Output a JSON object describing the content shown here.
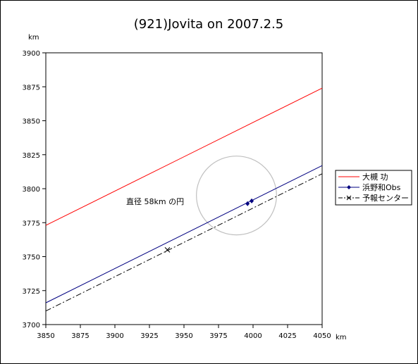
{
  "chart_data": {
    "type": "line",
    "title": "(921)Jovita on 2007.2.5",
    "xlabel": "km",
    "ylabel": "km",
    "xlim": [
      3850,
      4050
    ],
    "ylim": [
      3700,
      3900
    ],
    "xticks": [
      3850,
      3875,
      3900,
      3925,
      3950,
      3975,
      4000,
      4025,
      4050
    ],
    "yticks": [
      3700,
      3725,
      3750,
      3775,
      3800,
      3825,
      3850,
      3875,
      3900
    ],
    "grid": false,
    "legend_position": "right",
    "annotation": "直径 58km の円",
    "circle": {
      "center": [
        3988,
        3795
      ],
      "diameter": 58,
      "color": "#c0c0c0"
    },
    "series": [
      {
        "name": "大槻 功",
        "color": "#ff0000",
        "style": "solid",
        "marker": "none",
        "x": [
          3850,
          4050
        ],
        "y": [
          3773,
          3874
        ]
      },
      {
        "name": "浜野和Obs",
        "color": "#000080",
        "style": "solid",
        "marker": "diamond",
        "x": [
          3850,
          4050
        ],
        "y": [
          3716,
          3817
        ],
        "points": [
          [
            3996,
            3789
          ],
          [
            3999,
            3791
          ]
        ]
      },
      {
        "name": "予報センター",
        "color": "#000000",
        "style": "dashdot",
        "marker": "x",
        "x": [
          3850,
          4050
        ],
        "y": [
          3710,
          3811
        ],
        "points": [
          [
            3938,
            3755
          ]
        ]
      }
    ]
  }
}
